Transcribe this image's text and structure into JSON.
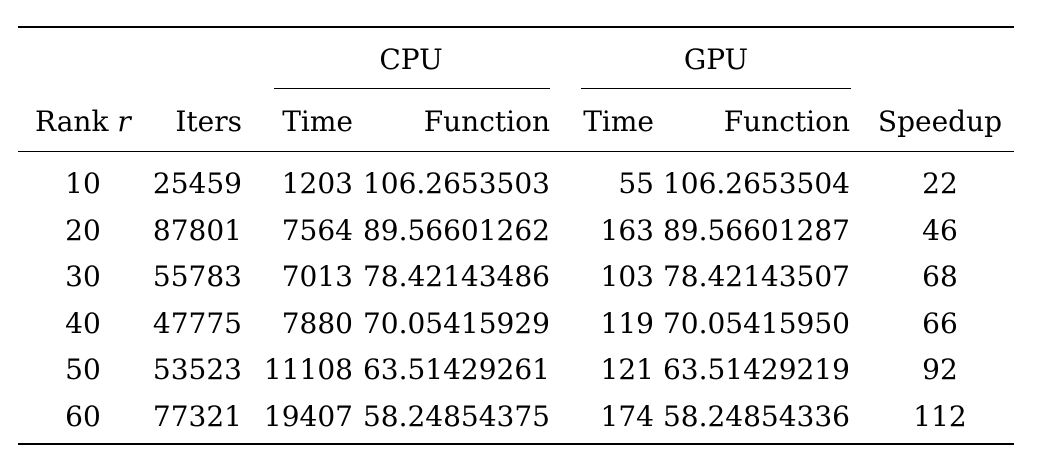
{
  "table": {
    "groups": {
      "cpu": "CPU",
      "gpu": "GPU"
    },
    "headers": {
      "rank": "Rank",
      "rank_var": "r",
      "iters": "Iters",
      "cpu_time": "Time",
      "cpu_function": "Function",
      "gpu_time": "Time",
      "gpu_function": "Function",
      "speedup": "Speedup"
    },
    "rows": [
      {
        "rank": "10",
        "iters": "25459",
        "cpu_time": "1203",
        "cpu_function": "106.2653503",
        "gpu_time": "55",
        "gpu_function": "106.2653504",
        "speedup": "22"
      },
      {
        "rank": "20",
        "iters": "87801",
        "cpu_time": "7564",
        "cpu_function": "89.56601262",
        "gpu_time": "163",
        "gpu_function": "89.56601287",
        "speedup": "46"
      },
      {
        "rank": "30",
        "iters": "55783",
        "cpu_time": "7013",
        "cpu_function": "78.42143486",
        "gpu_time": "103",
        "gpu_function": "78.42143507",
        "speedup": "68"
      },
      {
        "rank": "40",
        "iters": "47775",
        "cpu_time": "7880",
        "cpu_function": "70.05415929",
        "gpu_time": "119",
        "gpu_function": "70.05415950",
        "speedup": "66"
      },
      {
        "rank": "50",
        "iters": "53523",
        "cpu_time": "11108",
        "cpu_function": "63.51429261",
        "gpu_time": "121",
        "gpu_function": "63.51429219",
        "speedup": "92"
      },
      {
        "rank": "60",
        "iters": "77321",
        "cpu_time": "19407",
        "cpu_function": "58.24854375",
        "gpu_time": "174",
        "gpu_function": "58.24854336",
        "speedup": "112"
      }
    ]
  }
}
